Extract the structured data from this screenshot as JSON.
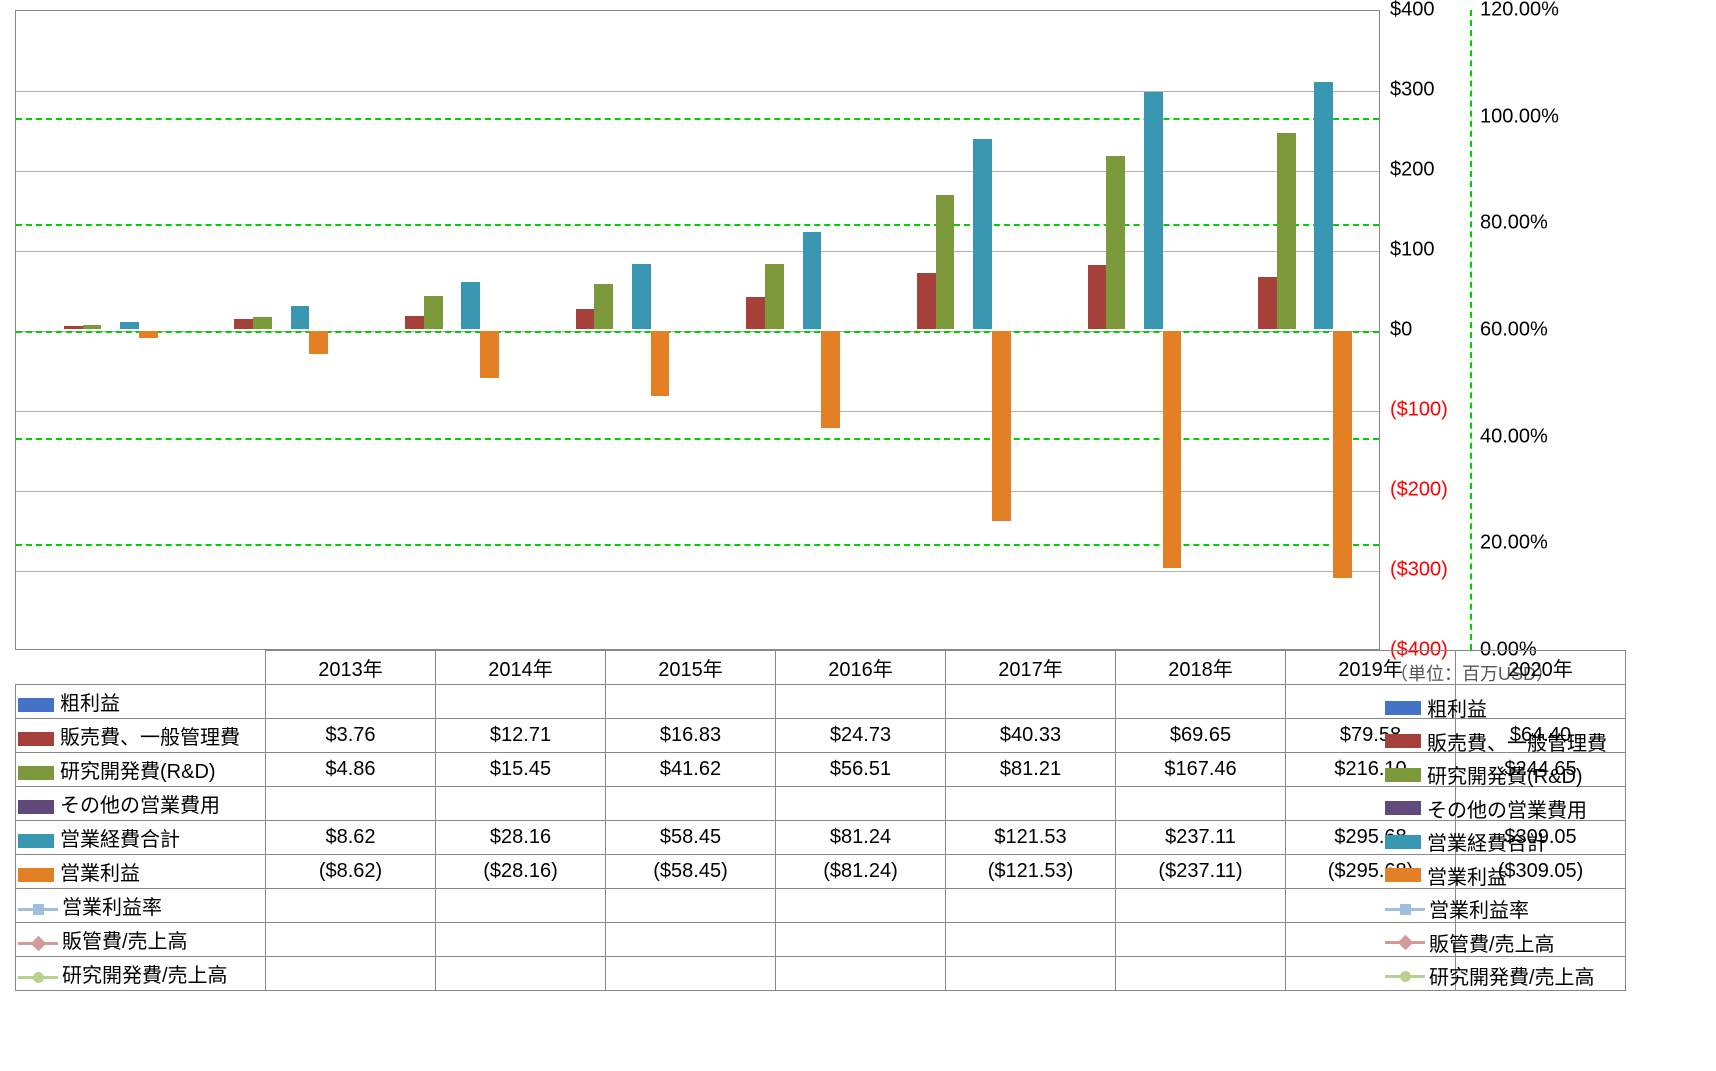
{
  "chart": {
    "type": "bar+line",
    "categories": [
      "2013年",
      "2014年",
      "2015年",
      "2016年",
      "2017年",
      "2018年",
      "2019年",
      "2020年"
    ],
    "left_axis": {
      "min": -400,
      "max": 400,
      "step": 100,
      "labels": [
        "$400",
        "$300",
        "$200",
        "$100",
        "$0",
        "($100)",
        "($200)",
        "($300)",
        "($400)"
      ],
      "neg_color": "#ff0000",
      "pos_color": "#000000",
      "unit_note": "（単位：百万USD）"
    },
    "right_axis": {
      "min": 0,
      "max": 120,
      "step": 20,
      "labels": [
        "120.00%",
        "100.00%",
        "80.00%",
        "60.00%",
        "40.00%",
        "20.00%",
        "0.00%"
      ],
      "grid_color": "#00d000"
    },
    "background_color": "#ffffff",
    "grid_color": "#b0b0b0",
    "border_color": "#888888",
    "bar_width_ratio": 0.11,
    "series": [
      {
        "key": "gross",
        "label": "粗利益",
        "color": "#4472c4",
        "type": "bar"
      },
      {
        "key": "sga",
        "label": "販売費、一般管理費",
        "color": "#a5403b",
        "type": "bar"
      },
      {
        "key": "rnd",
        "label": "研究開発費(R&D)",
        "color": "#7c9a3b",
        "type": "bar"
      },
      {
        "key": "other",
        "label": "その他の営業費用",
        "color": "#604a7b",
        "type": "bar"
      },
      {
        "key": "opex",
        "label": "営業経費合計",
        "color": "#3a97b2",
        "type": "bar"
      },
      {
        "key": "opinc",
        "label": "営業利益",
        "color": "#e38026",
        "type": "bar"
      },
      {
        "key": "opmargin",
        "label": "営業利益率",
        "color": "#a0bfe0",
        "type": "line",
        "marker": "square"
      },
      {
        "key": "sga_ratio",
        "label": "販管費/売上高",
        "color": "#d49a9a",
        "type": "line",
        "marker": "diamond"
      },
      {
        "key": "rnd_ratio",
        "label": "研究開発費/売上高",
        "color": "#b8d090",
        "type": "line",
        "marker": "circle"
      }
    ],
    "data": {
      "gross": [
        null,
        null,
        null,
        null,
        null,
        null,
        null,
        null
      ],
      "sga": [
        3.76,
        12.71,
        16.83,
        24.73,
        40.33,
        69.65,
        79.58,
        64.4
      ],
      "rnd": [
        4.86,
        15.45,
        41.62,
        56.51,
        81.21,
        167.46,
        216.1,
        244.65
      ],
      "other": [
        null,
        null,
        null,
        null,
        null,
        null,
        null,
        null
      ],
      "opex": [
        8.62,
        28.16,
        58.45,
        81.24,
        121.53,
        237.11,
        295.68,
        309.05
      ],
      "opinc": [
        -8.62,
        -28.16,
        -58.45,
        -81.24,
        -121.53,
        -237.11,
        -295.68,
        -309.05
      ]
    },
    "fmt": {
      "sga": [
        "$3.76",
        "$12.71",
        "$16.83",
        "$24.73",
        "$40.33",
        "$69.65",
        "$79.58",
        "$64.40"
      ],
      "rnd": [
        "$4.86",
        "$15.45",
        "$41.62",
        "$56.51",
        "$81.21",
        "$167.46",
        "$216.10",
        "$244.65"
      ],
      "opex": [
        "$8.62",
        "$28.16",
        "$58.45",
        "$81.24",
        "$121.53",
        "$237.11",
        "$295.68",
        "$309.05"
      ],
      "opinc": [
        "($8.62)",
        "($28.16)",
        "($58.45)",
        "($81.24)",
        "($121.53)",
        "($237.11)",
        "($295.68)",
        "($309.05)"
      ]
    }
  }
}
